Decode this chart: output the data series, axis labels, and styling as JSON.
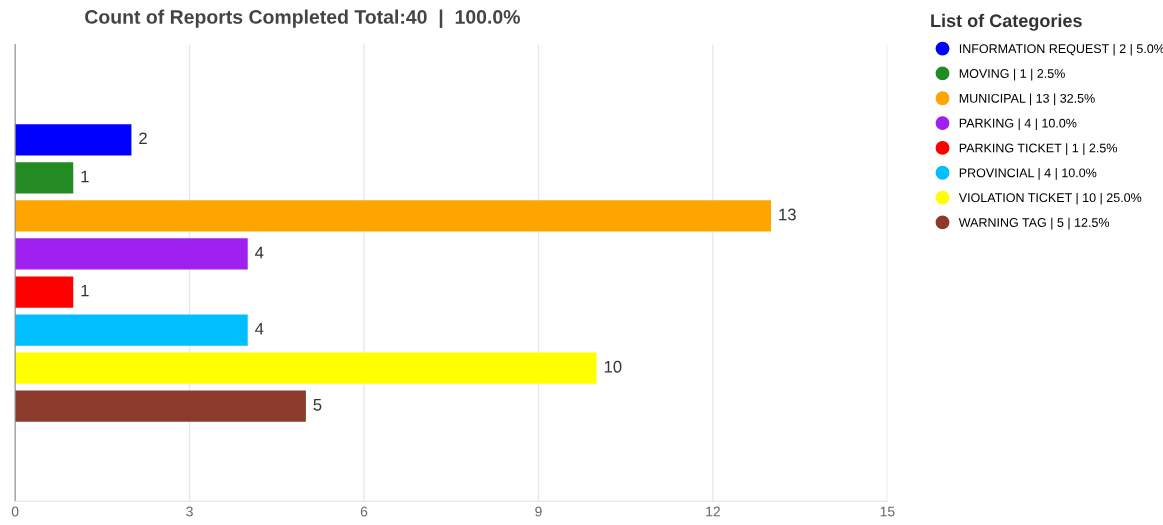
{
  "chart_data": {
    "type": "bar",
    "orientation": "horizontal",
    "title": "Count of Reports Completed Total:40  |  100.0%",
    "legend_title": "List of Categories",
    "categories": [
      null,
      null,
      null,
      null,
      null,
      null,
      null,
      null,
      null,
      null,
      null,
      null
    ],
    "series": [
      {
        "name": "INFORMATION REQUEST | 2 | 5.0%",
        "color": "#0000ff",
        "values": [
          null,
          null,
          2,
          null,
          null,
          null,
          null,
          null,
          null,
          null,
          null,
          null
        ]
      },
      {
        "name": "MOVING | 1 | 2.5%",
        "color": "#228b22",
        "values": [
          null,
          null,
          null,
          1,
          null,
          null,
          null,
          null,
          null,
          null,
          null,
          null
        ]
      },
      {
        "name": "MUNICIPAL | 13 | 32.5%",
        "color": "#ffa500",
        "values": [
          null,
          null,
          null,
          null,
          13,
          null,
          null,
          null,
          null,
          null,
          null,
          null
        ]
      },
      {
        "name": "PARKING | 4 | 10.0%",
        "color": "#a020f0",
        "values": [
          null,
          null,
          null,
          null,
          null,
          4,
          null,
          null,
          null,
          null,
          null,
          null
        ]
      },
      {
        "name": "PARKING TICKET | 1 | 2.5%",
        "color": "#ff0000",
        "values": [
          null,
          null,
          null,
          null,
          null,
          null,
          1,
          null,
          null,
          null,
          null,
          null
        ]
      },
      {
        "name": "PROVINCIAL | 4 | 10.0%",
        "color": "#00bfff",
        "values": [
          null,
          null,
          null,
          null,
          null,
          null,
          null,
          4,
          null,
          null,
          null,
          null
        ]
      },
      {
        "name": "VIOLATION TICKET | 10 | 25.0%",
        "color": "#ffff00",
        "values": [
          null,
          null,
          null,
          null,
          null,
          null,
          null,
          null,
          10,
          null,
          null,
          null
        ]
      },
      {
        "name": "WARNING TAG | 5 | 12.5%",
        "color": "#8b3a2b",
        "values": [
          null,
          null,
          null,
          null,
          null,
          null,
          null,
          null,
          null,
          5,
          null,
          null
        ]
      }
    ],
    "xlim": [
      0,
      15
    ],
    "xticks": [
      0,
      3,
      6,
      9,
      12,
      15
    ],
    "grid": "x",
    "legend": "right",
    "marker": "circle",
    "data_labels": true
  }
}
